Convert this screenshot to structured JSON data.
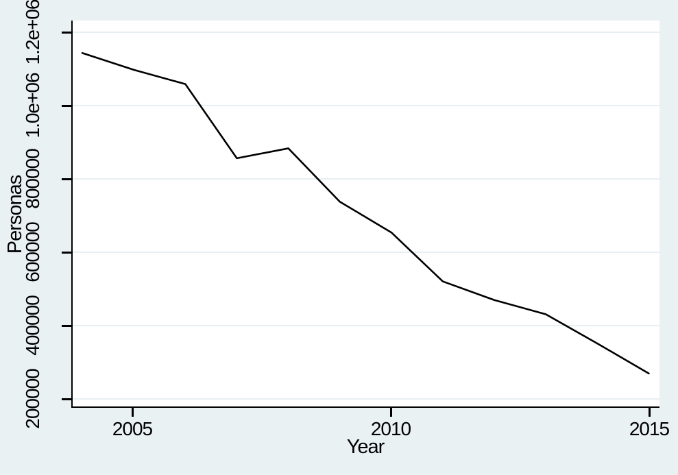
{
  "chart_data": {
    "type": "line",
    "title": "",
    "xlabel": "Year",
    "ylabel": "Personas",
    "x": [
      2004,
      2005,
      2006,
      2007,
      2008,
      2009,
      2010,
      2011,
      2012,
      2013,
      2014,
      2015
    ],
    "series": [
      {
        "name": "Personas",
        "color": "#000000",
        "values": [
          1143000,
          1097000,
          1058000,
          855000,
          882000,
          736000,
          652000,
          518000,
          467000,
          428000,
          348000,
          266000
        ]
      }
    ],
    "xticks": [
      {
        "value": 2005,
        "label": "2005"
      },
      {
        "value": 2010,
        "label": "2010"
      },
      {
        "value": 2015,
        "label": "2015"
      }
    ],
    "yticks": [
      {
        "value": 200000,
        "label": "200000"
      },
      {
        "value": 400000,
        "label": "400000"
      },
      {
        "value": 600000,
        "label": "600000"
      },
      {
        "value": 800000,
        "label": "800000"
      },
      {
        "value": 1000000,
        "label": "1.0e+06"
      },
      {
        "value": 1200000,
        "label": "1.2e+06"
      }
    ],
    "xlim": [
      2003.82,
      2015.2
    ],
    "ylim": [
      175700,
      1231800
    ],
    "grid": true,
    "legend": false
  },
  "colors": {
    "background": "#EAF1F3",
    "plot_background": "#FFFFFF",
    "gridline": "#E6EFF2",
    "axis": "#000000",
    "line": "#000000",
    "text": "#000000"
  }
}
